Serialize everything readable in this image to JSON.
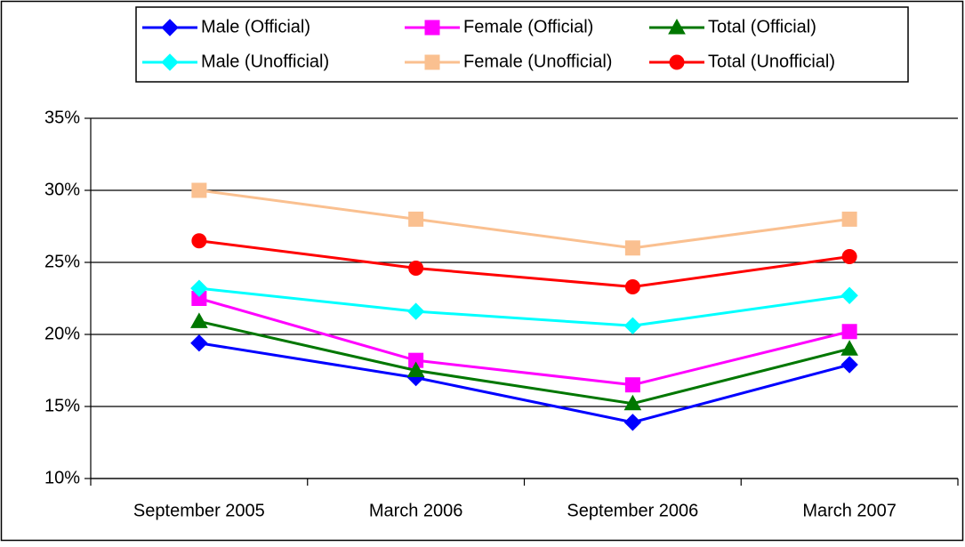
{
  "chart_data": {
    "type": "line",
    "categories": [
      "September 2005",
      "March 2006",
      "September 2006",
      "March 2007"
    ],
    "series": [
      {
        "name": "Male (Official)",
        "color": "#0000ff",
        "marker": "diamond",
        "values": [
          19.4,
          17.0,
          13.9,
          17.9
        ]
      },
      {
        "name": "Female (Official)",
        "color": "#ff00ff",
        "marker": "square",
        "values": [
          22.5,
          18.2,
          16.5,
          20.2
        ]
      },
      {
        "name": "Total (Official)",
        "color": "#007700",
        "marker": "triangle",
        "values": [
          20.9,
          17.5,
          15.2,
          19.0
        ]
      },
      {
        "name": "Male (Unofficial)",
        "color": "#00ffff",
        "marker": "diamond",
        "values": [
          23.2,
          21.6,
          20.6,
          22.7
        ]
      },
      {
        "name": "Female (Unofficial)",
        "color": "#fac090",
        "marker": "square",
        "values": [
          30.0,
          28.0,
          26.0,
          28.0
        ]
      },
      {
        "name": "Total (Unofficial)",
        "color": "#ff0000",
        "marker": "circle",
        "values": [
          26.5,
          24.6,
          23.3,
          25.4
        ]
      }
    ],
    "ylim": [
      10,
      35
    ],
    "yticks": [
      {
        "value": 10,
        "label": "10%"
      },
      {
        "value": 15,
        "label": "15%"
      },
      {
        "value": 20,
        "label": "20%"
      },
      {
        "value": 25,
        "label": "25%"
      },
      {
        "value": 30,
        "label": "30%"
      },
      {
        "value": 35,
        "label": "35%"
      }
    ],
    "grid": true,
    "legend": "top"
  }
}
